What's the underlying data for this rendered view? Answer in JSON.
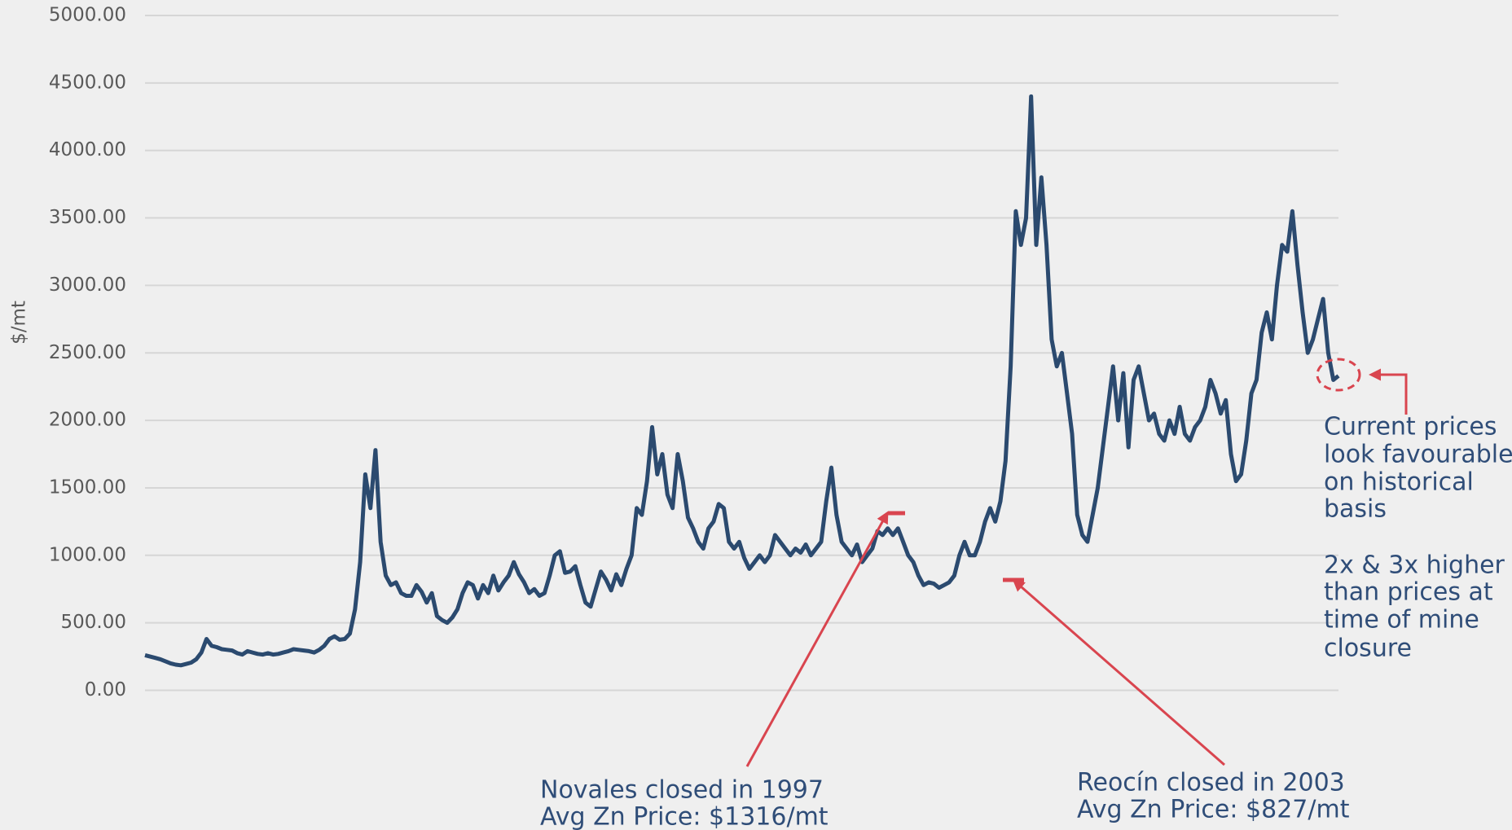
{
  "chart_data": {
    "type": "line",
    "y_label": "$/mt",
    "ylim": [
      0,
      5000
    ],
    "yticks": [
      {
        "value": 0,
        "label": "0.00"
      },
      {
        "value": 500,
        "label": "500.00"
      },
      {
        "value": 1000,
        "label": "1000.00"
      },
      {
        "value": 1500,
        "label": "1500.00"
      },
      {
        "value": 2000,
        "label": "2000.00"
      },
      {
        "value": 2500,
        "label": "2500.00"
      },
      {
        "value": 3000,
        "label": "3000.00"
      },
      {
        "value": 3500,
        "label": "3500.00"
      },
      {
        "value": 4000,
        "label": "4000.00"
      },
      {
        "value": 4500,
        "label": "4500.00"
      },
      {
        "value": 5000,
        "label": "5000.00"
      }
    ],
    "grid": true,
    "color": "#2b4a6f",
    "values": [
      260,
      250,
      240,
      230,
      215,
      200,
      190,
      185,
      195,
      205,
      230,
      280,
      380,
      330,
      320,
      305,
      300,
      295,
      275,
      265,
      290,
      280,
      270,
      265,
      275,
      265,
      270,
      280,
      290,
      305,
      300,
      295,
      290,
      280,
      300,
      330,
      380,
      400,
      375,
      380,
      420,
      600,
      950,
      1600,
      1350,
      1780,
      1100,
      850,
      780,
      800,
      720,
      700,
      700,
      780,
      730,
      650,
      720,
      550,
      520,
      500,
      540,
      600,
      720,
      800,
      780,
      680,
      780,
      720,
      850,
      740,
      800,
      850,
      950,
      860,
      800,
      720,
      750,
      700,
      720,
      850,
      1000,
      1030,
      870,
      880,
      920,
      780,
      650,
      620,
      750,
      880,
      820,
      740,
      860,
      780,
      900,
      1000,
      1350,
      1300,
      1550,
      1950,
      1600,
      1750,
      1450,
      1350,
      1750,
      1550,
      1280,
      1200,
      1100,
      1050,
      1200,
      1250,
      1380,
      1350,
      1100,
      1050,
      1100,
      980,
      900,
      950,
      1000,
      950,
      1000,
      1150,
      1100,
      1050,
      1000,
      1050,
      1020,
      1080,
      1000,
      1050,
      1100,
      1400,
      1650,
      1300,
      1100,
      1050,
      1000,
      1080,
      950,
      1000,
      1050,
      1180,
      1150,
      1200,
      1150,
      1200,
      1100,
      1000,
      950,
      850,
      780,
      800,
      790,
      760,
      780,
      800,
      850,
      1000,
      1100,
      1000,
      1000,
      1100,
      1250,
      1350,
      1250,
      1400,
      1700,
      2400,
      3550,
      3300,
      3500,
      4400,
      3300,
      3800,
      3300,
      2600,
      2400,
      2500,
      2200,
      1900,
      1300,
      1150,
      1100,
      1300,
      1500,
      1800,
      2100,
      2400,
      2000,
      2350,
      1800,
      2300,
      2400,
      2200,
      2000,
      2050,
      1900,
      1850,
      2000,
      1900,
      2100,
      1900,
      1850,
      1950,
      2000,
      2100,
      2300,
      2200,
      2050,
      2150,
      1750,
      1550,
      1600,
      1850,
      2200,
      2300,
      2650,
      2800,
      2600,
      3000,
      3300,
      3250,
      3550,
      3150,
      2800,
      2500,
      2600,
      2750,
      2900,
      2500,
      2300,
      2330
    ],
    "annotations": [
      "Novales closed in 1997",
      "Avg Zn Price: $1316/mt",
      "Reocín closed in 2003",
      "Avg Zn Price: $827/mt",
      "Current prices",
      "look favourable",
      "on historical",
      "basis",
      "2x & 3x higher",
      "than prices  at",
      "time of mine",
      "closure"
    ]
  }
}
